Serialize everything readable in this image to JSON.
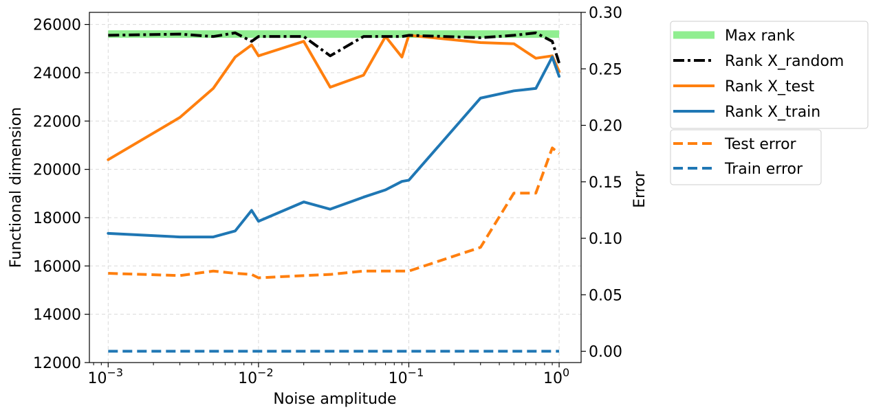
{
  "chart_data": {
    "type": "line",
    "xlabel": "Noise amplitude",
    "ylabel_left": "Functional dimension",
    "ylabel_right": "Error",
    "xscale": "log",
    "xlim": [
      0.00075,
      1.4
    ],
    "ylim_left": [
      12000,
      26500
    ],
    "ylim_right": [
      -0.01,
      0.3
    ],
    "grid": true,
    "x_ticks": [
      {
        "value": 0.001,
        "base": "10",
        "exp": "−3"
      },
      {
        "value": 0.01,
        "base": "10",
        "exp": "−2"
      },
      {
        "value": 0.1,
        "base": "10",
        "exp": "−1"
      },
      {
        "value": 1,
        "base": "10",
        "exp": "0"
      }
    ],
    "y_left_ticks": [
      12000,
      14000,
      16000,
      18000,
      20000,
      22000,
      24000,
      26000
    ],
    "y_left_tick_labels": [
      "12000",
      "14000",
      "16000",
      "18000",
      "20000",
      "22000",
      "24000",
      "26000"
    ],
    "y_right_ticks": [
      0.0,
      0.05,
      0.1,
      0.15,
      0.2,
      0.25,
      0.3
    ],
    "y_right_tick_labels": [
      "0.00",
      "0.05",
      "0.10",
      "0.15",
      "0.20",
      "0.25",
      "0.30"
    ],
    "x": [
      0.001,
      0.003,
      0.005,
      0.007,
      0.009,
      0.01,
      0.02,
      0.03,
      0.05,
      0.07,
      0.09,
      0.1,
      0.3,
      0.5,
      0.7,
      0.9,
      1.0
    ],
    "series": [
      {
        "name": "Max rank",
        "axis": "left",
        "style": "solid-thick",
        "color": "#90ee90",
        "values": [
          25600,
          25600,
          25600,
          25600,
          25600,
          25600,
          25600,
          25600,
          25600,
          25600,
          25600,
          25600,
          25600,
          25600,
          25600,
          25600,
          25600
        ]
      },
      {
        "name": "Rank X_random",
        "axis": "left",
        "style": "dashdot",
        "color": "#000000",
        "values": [
          25550,
          25600,
          25500,
          25650,
          25300,
          25500,
          25500,
          24700,
          25500,
          25500,
          25500,
          25550,
          25450,
          25550,
          25650,
          25300,
          24400
        ]
      },
      {
        "name": "Rank X_test",
        "axis": "left",
        "style": "solid",
        "color": "#ff7f0e",
        "values": [
          20400,
          22150,
          23350,
          24650,
          25150,
          24700,
          25300,
          23400,
          23900,
          25500,
          24650,
          25550,
          25250,
          25200,
          24600,
          24700,
          24050
        ]
      },
      {
        "name": "Rank X_train",
        "axis": "left",
        "style": "solid",
        "color": "#1f77b4",
        "values": [
          17350,
          17200,
          17200,
          17450,
          18300,
          17850,
          18650,
          18350,
          18850,
          19150,
          19500,
          19550,
          22950,
          23250,
          23350,
          24650,
          23850
        ]
      },
      {
        "name": "Test error",
        "axis": "right",
        "style": "dashed",
        "color": "#ff7f0e",
        "values": [
          0.069,
          0.067,
          0.071,
          0.069,
          0.068,
          0.065,
          0.067,
          0.068,
          0.071,
          0.071,
          0.071,
          0.071,
          0.092,
          0.14,
          0.14,
          0.18,
          0.175
        ]
      },
      {
        "name": "Train error",
        "axis": "right",
        "style": "dashed",
        "color": "#1f77b4",
        "values": [
          0.0,
          0.0,
          0.0,
          0.0,
          0.0,
          0.0,
          0.0,
          0.0,
          0.0,
          0.0,
          0.0,
          0.0,
          0.0,
          0.0,
          0.0,
          0.0,
          0.0
        ]
      }
    ],
    "legend_groups": [
      {
        "placement": "upper-right-outside",
        "entries": [
          "Max rank",
          "Rank X_random",
          "Rank X_test",
          "Rank X_train"
        ]
      },
      {
        "placement": "right-outside-below",
        "entries": [
          "Test error",
          "Train error"
        ]
      }
    ]
  }
}
